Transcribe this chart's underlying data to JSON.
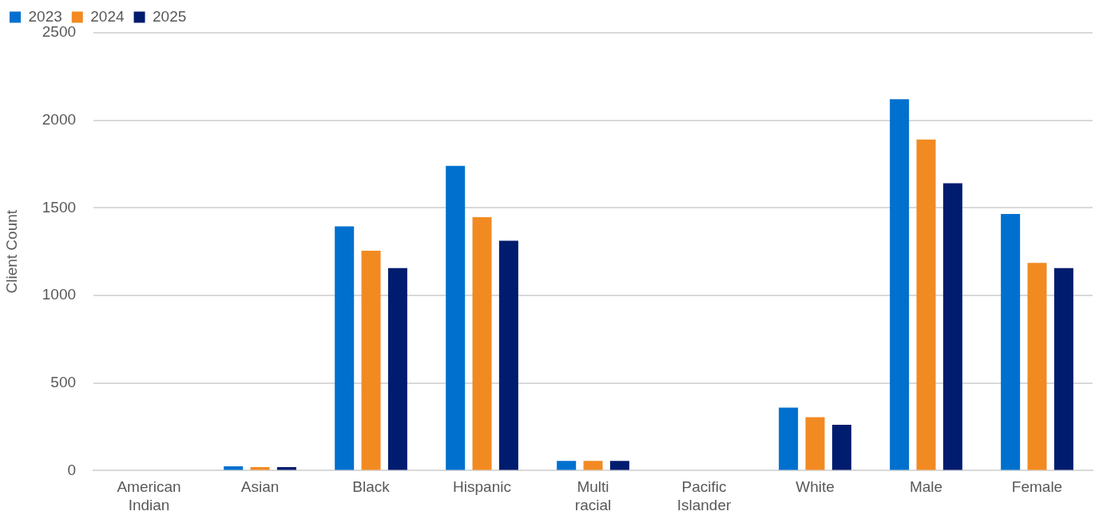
{
  "chart_data": {
    "type": "bar",
    "ylabel": "Client Count",
    "categories": [
      "American Indian",
      "Asian",
      "Black",
      "Hispanic",
      "Multi racial",
      "Pacific Islander",
      "White",
      "Male",
      "Female"
    ],
    "series": [
      {
        "name": "2023",
        "color": "#0070cf",
        "values": [
          0,
          25,
          1395,
          1740,
          55,
          0,
          360,
          2120,
          1465
        ]
      },
      {
        "name": "2024",
        "color": "#f28a22",
        "values": [
          0,
          20,
          1255,
          1447,
          55,
          0,
          305,
          1890,
          1186
        ]
      },
      {
        "name": "2025",
        "color": "#001c6e",
        "values": [
          0,
          20,
          1156,
          1312,
          55,
          0,
          262,
          1641,
          1156
        ]
      }
    ],
    "ylim": [
      0,
      2500
    ],
    "yticks": [
      0,
      500,
      1000,
      1500,
      2000,
      2500
    ],
    "grid": "y",
    "legend": "top left"
  }
}
